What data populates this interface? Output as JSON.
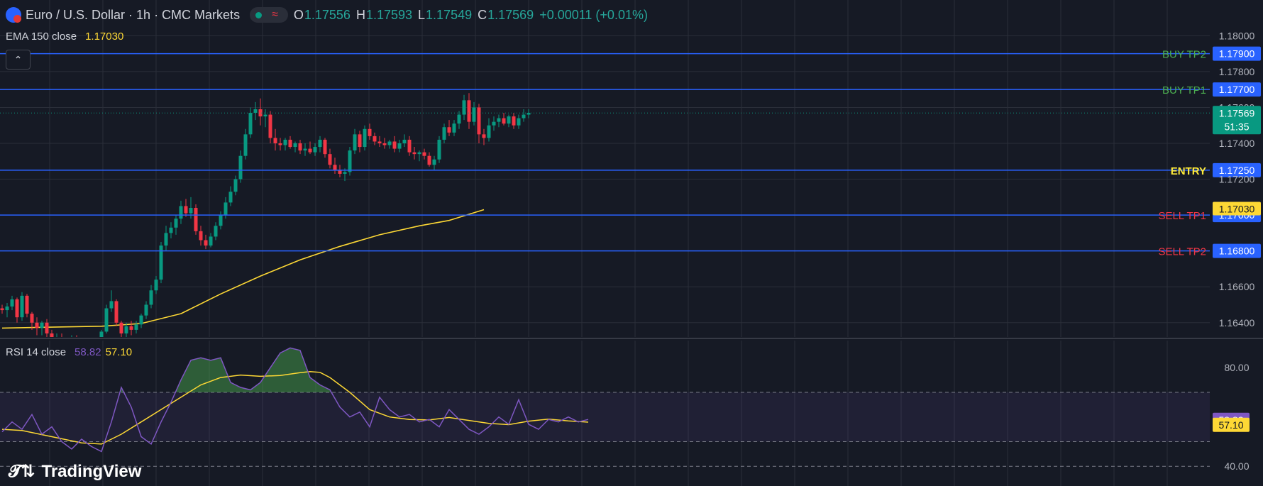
{
  "header": {
    "symbol_title": "Euro / U.S. Dollar · 1h · CMC Markets",
    "ohlc": {
      "o_label": "O",
      "o": "1.17556",
      "h_label": "H",
      "h": "1.17593",
      "l_label": "L",
      "l": "1.17549",
      "c_label": "C",
      "c": "1.17569",
      "change": "+0.00011 (+0.01%)"
    }
  },
  "indicators": {
    "ema": {
      "label": "EMA 150 close",
      "value": "1.17030"
    },
    "rsi": {
      "label": "RSI 14 close",
      "value": "58.82",
      "ma_value": "57.10"
    }
  },
  "branding": {
    "logo_text": "TradingView"
  },
  "colors": {
    "background": "#161a25",
    "grid": "#2a2e39",
    "up": "#089981",
    "down": "#f23645",
    "level_line": "#2962ff",
    "ema": "#fdd835",
    "rsi": "#7e57c2",
    "rsi_ma": "#fdd835",
    "buy_label": "#4caf50",
    "sell_label": "#f23645",
    "entry_label": "#ffeb3b"
  },
  "chart_data": [
    {
      "type": "candlestick",
      "symbol": "EUR/USD",
      "interval": "1h",
      "ylim": [
        1.1632,
        1.1812
      ],
      "y_ticks": [
        "1.18000",
        "1.17800",
        "1.17600",
        "1.17400",
        "1.17200",
        "1.16600",
        "1.16400"
      ],
      "levels": [
        {
          "name": "BUY TP2",
          "price": "1.17900",
          "value": 1.179,
          "kind": "buy"
        },
        {
          "name": "BUY TP1",
          "price": "1.17700",
          "value": 1.177,
          "kind": "buy"
        },
        {
          "name": "ENTRY",
          "price": "1.17250",
          "value": 1.1725,
          "kind": "entry"
        },
        {
          "name": "SELL TP1",
          "price": "1.17000",
          "value": 1.17,
          "kind": "sell"
        },
        {
          "name": "SELL TP2",
          "price": "1.16800",
          "value": 1.168,
          "kind": "sell"
        }
      ],
      "last_price": {
        "label": "1.17569",
        "value": 1.17569,
        "countdown": "51:35"
      },
      "ema_tag": {
        "label": "1.17030",
        "value": 1.1703
      },
      "ema_points": [
        [
          0,
          1.1637
        ],
        [
          10,
          1.16375
        ],
        [
          20,
          1.1638
        ],
        [
          28,
          1.16395
        ],
        [
          36,
          1.1645
        ],
        [
          44,
          1.1656
        ],
        [
          52,
          1.1666
        ],
        [
          60,
          1.1675
        ],
        [
          68,
          1.16825
        ],
        [
          76,
          1.1689
        ],
        [
          84,
          1.1694
        ],
        [
          90,
          1.1697
        ],
        [
          97,
          1.1703
        ]
      ],
      "candles": [
        [
          1.1648,
          1.165,
          1.1645,
          1.1647
        ],
        [
          1.1647,
          1.1651,
          1.1643,
          1.1649
        ],
        [
          1.1649,
          1.1655,
          1.1647,
          1.1653
        ],
        [
          1.1653,
          1.1654,
          1.164,
          1.1643
        ],
        [
          1.1643,
          1.1657,
          1.1641,
          1.1655
        ],
        [
          1.1655,
          1.1656,
          1.1643,
          1.1645
        ],
        [
          1.1645,
          1.1646,
          1.1636,
          1.164
        ],
        [
          1.164,
          1.1643,
          1.1633,
          1.1637
        ],
        [
          1.1637,
          1.1641,
          1.1633,
          1.164
        ],
        [
          1.164,
          1.1642,
          1.1631,
          1.1634
        ],
        [
          1.1634,
          1.1636,
          1.1629,
          1.1631
        ],
        [
          1.1631,
          1.1634,
          1.1629,
          1.1632
        ],
        [
          1.1632,
          1.1634,
          1.163,
          1.1631
        ],
        [
          1.1631,
          1.1632,
          1.1629,
          1.163
        ],
        [
          1.163,
          1.1633,
          1.1628,
          1.1631
        ],
        [
          1.1631,
          1.1633,
          1.1629,
          1.163
        ],
        [
          1.163,
          1.1632,
          1.1628,
          1.1629
        ],
        [
          1.1629,
          1.1631,
          1.1627,
          1.1628
        ],
        [
          1.1628,
          1.163,
          1.1626,
          1.1627
        ],
        [
          1.1627,
          1.1629,
          1.1625,
          1.1628
        ],
        [
          1.1628,
          1.1636,
          1.1627,
          1.1635
        ],
        [
          1.1635,
          1.165,
          1.1634,
          1.1648
        ],
        [
          1.1648,
          1.1658,
          1.1646,
          1.1652
        ],
        [
          1.1652,
          1.1653,
          1.1638,
          1.164
        ],
        [
          1.164,
          1.1641,
          1.163,
          1.1634
        ],
        [
          1.1634,
          1.164,
          1.1632,
          1.1638
        ],
        [
          1.1638,
          1.1641,
          1.1633,
          1.1636
        ],
        [
          1.1636,
          1.1641,
          1.1634,
          1.1639
        ],
        [
          1.1639,
          1.1645,
          1.1637,
          1.1644
        ],
        [
          1.1644,
          1.1652,
          1.1642,
          1.165
        ],
        [
          1.165,
          1.1661,
          1.1648,
          1.1658
        ],
        [
          1.1658,
          1.1666,
          1.1656,
          1.1664
        ],
        [
          1.1664,
          1.1685,
          1.1662,
          1.1683
        ],
        [
          1.1683,
          1.1694,
          1.168,
          1.169
        ],
        [
          1.169,
          1.1696,
          1.1687,
          1.1693
        ],
        [
          1.1693,
          1.17,
          1.1689,
          1.1698
        ],
        [
          1.1698,
          1.1708,
          1.1695,
          1.1705
        ],
        [
          1.1705,
          1.1709,
          1.1699,
          1.1701
        ],
        [
          1.1701,
          1.171,
          1.1698,
          1.1704
        ],
        [
          1.1704,
          1.1706,
          1.1689,
          1.1691
        ],
        [
          1.1691,
          1.1694,
          1.1683,
          1.1686
        ],
        [
          1.1686,
          1.1689,
          1.1681,
          1.1683
        ],
        [
          1.1683,
          1.169,
          1.1682,
          1.1688
        ],
        [
          1.1688,
          1.1696,
          1.1686,
          1.1694
        ],
        [
          1.1694,
          1.1702,
          1.1692,
          1.17
        ],
        [
          1.17,
          1.171,
          1.1698,
          1.1707
        ],
        [
          1.1707,
          1.1716,
          1.1705,
          1.1713
        ],
        [
          1.1713,
          1.1722,
          1.1711,
          1.172
        ],
        [
          1.172,
          1.1736,
          1.1718,
          1.1733
        ],
        [
          1.1733,
          1.1748,
          1.1731,
          1.1745
        ],
        [
          1.1745,
          1.176,
          1.1743,
          1.1757
        ],
        [
          1.1757,
          1.1763,
          1.1753,
          1.1759
        ],
        [
          1.1759,
          1.1765,
          1.175,
          1.1755
        ],
        [
          1.1755,
          1.1759,
          1.1749,
          1.1756
        ],
        [
          1.1756,
          1.1758,
          1.174,
          1.1743
        ],
        [
          1.1743,
          1.1748,
          1.1736,
          1.174
        ],
        [
          1.174,
          1.1743,
          1.1736,
          1.1739
        ],
        [
          1.1739,
          1.1743,
          1.1736,
          1.1742
        ],
        [
          1.1742,
          1.1744,
          1.1737,
          1.1738
        ],
        [
          1.1738,
          1.1741,
          1.1735,
          1.174
        ],
        [
          1.174,
          1.1742,
          1.1734,
          1.1736
        ],
        [
          1.1736,
          1.174,
          1.1733,
          1.1737
        ],
        [
          1.1737,
          1.1741,
          1.1734,
          1.1735
        ],
        [
          1.1735,
          1.174,
          1.1733,
          1.1738
        ],
        [
          1.1738,
          1.1744,
          1.1735,
          1.1742
        ],
        [
          1.1742,
          1.1743,
          1.1732,
          1.1734
        ],
        [
          1.1734,
          1.1737,
          1.1726,
          1.1728
        ],
        [
          1.1728,
          1.1732,
          1.1723,
          1.1725
        ],
        [
          1.1725,
          1.1728,
          1.1721,
          1.1723
        ],
        [
          1.1723,
          1.1726,
          1.1719,
          1.1724
        ],
        [
          1.1724,
          1.1738,
          1.1722,
          1.1736
        ],
        [
          1.1736,
          1.1748,
          1.1734,
          1.1745
        ],
        [
          1.1745,
          1.1747,
          1.1735,
          1.1738
        ],
        [
          1.1738,
          1.175,
          1.1736,
          1.1748
        ],
        [
          1.1748,
          1.1751,
          1.1742,
          1.1744
        ],
        [
          1.1744,
          1.1746,
          1.1739,
          1.1741
        ],
        [
          1.1741,
          1.1744,
          1.1738,
          1.174
        ],
        [
          1.174,
          1.1743,
          1.1737,
          1.1739
        ],
        [
          1.1739,
          1.1742,
          1.1737,
          1.1741
        ],
        [
          1.1741,
          1.1744,
          1.1735,
          1.1737
        ],
        [
          1.1737,
          1.1742,
          1.1735,
          1.174
        ],
        [
          1.174,
          1.1745,
          1.1738,
          1.1742
        ],
        [
          1.1742,
          1.1744,
          1.1733,
          1.1735
        ],
        [
          1.1735,
          1.1738,
          1.1731,
          1.1734
        ],
        [
          1.1734,
          1.1736,
          1.173,
          1.1735
        ],
        [
          1.1735,
          1.1737,
          1.1731,
          1.1733
        ],
        [
          1.1733,
          1.1735,
          1.1727,
          1.1728
        ],
        [
          1.1728,
          1.1733,
          1.1725,
          1.1731
        ],
        [
          1.1731,
          1.1744,
          1.1729,
          1.1742
        ],
        [
          1.1742,
          1.1751,
          1.174,
          1.1749
        ],
        [
          1.1749,
          1.1753,
          1.1744,
          1.1746
        ],
        [
          1.1746,
          1.1753,
          1.1744,
          1.1751
        ],
        [
          1.1751,
          1.1758,
          1.1748,
          1.1756
        ],
        [
          1.1756,
          1.1767,
          1.1753,
          1.1764
        ],
        [
          1.1764,
          1.1768,
          1.1748,
          1.1752
        ],
        [
          1.1752,
          1.1763,
          1.175,
          1.176
        ],
        [
          1.176,
          1.1762,
          1.174,
          1.1745
        ],
        [
          1.1745,
          1.1748,
          1.1739,
          1.1743
        ],
        [
          1.1743,
          1.1754,
          1.1741,
          1.175
        ],
        [
          1.175,
          1.1755,
          1.1747,
          1.1752
        ],
        [
          1.1752,
          1.1756,
          1.1749,
          1.1754
        ],
        [
          1.1754,
          1.1757,
          1.175,
          1.1751
        ],
        [
          1.1751,
          1.1756,
          1.1749,
          1.1755
        ],
        [
          1.1755,
          1.1757,
          1.1748,
          1.175
        ],
        [
          1.175,
          1.1756,
          1.1748,
          1.1754
        ],
        [
          1.1754,
          1.1759,
          1.1752,
          1.1756
        ],
        [
          1.1756,
          1.1759,
          1.1754,
          1.1757
        ]
      ]
    },
    {
      "type": "line",
      "name": "RSI 14",
      "ylim": [
        32,
        91
      ],
      "y_ticks": [
        "80.00",
        "40.00"
      ],
      "bands": [
        70,
        50
      ],
      "rsi_tag": {
        "label": "58.82",
        "value": 58.82
      },
      "ma_tag": {
        "label": "57.10",
        "value": 57.1
      },
      "rsi_points": [
        [
          0,
          54
        ],
        [
          2,
          58
        ],
        [
          4,
          55
        ],
        [
          6,
          61
        ],
        [
          8,
          53
        ],
        [
          10,
          56
        ],
        [
          12,
          50
        ],
        [
          14,
          47
        ],
        [
          16,
          51
        ],
        [
          18,
          48
        ],
        [
          20,
          46
        ],
        [
          22,
          58
        ],
        [
          24,
          72
        ],
        [
          26,
          64
        ],
        [
          28,
          52
        ],
        [
          30,
          49
        ],
        [
          32,
          58
        ],
        [
          34,
          66
        ],
        [
          36,
          75
        ],
        [
          38,
          83
        ],
        [
          40,
          84
        ],
        [
          42,
          83
        ],
        [
          44,
          84
        ],
        [
          46,
          74
        ],
        [
          48,
          72
        ],
        [
          50,
          71
        ],
        [
          52,
          74
        ],
        [
          54,
          80
        ],
        [
          56,
          86
        ],
        [
          58,
          88
        ],
        [
          60,
          87
        ],
        [
          62,
          76
        ],
        [
          64,
          73
        ],
        [
          66,
          71
        ],
        [
          68,
          64
        ],
        [
          70,
          60
        ],
        [
          72,
          62
        ],
        [
          74,
          56
        ],
        [
          76,
          68
        ],
        [
          78,
          63
        ],
        [
          80,
          60
        ],
        [
          82,
          61
        ],
        [
          84,
          58
        ],
        [
          86,
          59
        ],
        [
          88,
          56
        ],
        [
          90,
          63
        ],
        [
          92,
          59
        ],
        [
          94,
          55
        ],
        [
          96,
          53
        ],
        [
          98,
          56
        ],
        [
          100,
          60
        ],
        [
          102,
          57
        ],
        [
          104,
          67
        ],
        [
          106,
          57
        ],
        [
          108,
          55
        ],
        [
          110,
          59
        ],
        [
          112,
          58
        ],
        [
          114,
          60
        ],
        [
          116,
          58
        ],
        [
          118,
          59
        ]
      ],
      "ma_points": [
        [
          0,
          55
        ],
        [
          4,
          54.5
        ],
        [
          10,
          52
        ],
        [
          16,
          49.5
        ],
        [
          20,
          49
        ],
        [
          24,
          53
        ],
        [
          28,
          58
        ],
        [
          32,
          63
        ],
        [
          36,
          68
        ],
        [
          40,
          73
        ],
        [
          44,
          76
        ],
        [
          48,
          77
        ],
        [
          52,
          76.5
        ],
        [
          56,
          76.8
        ],
        [
          60,
          78
        ],
        [
          62,
          78.4
        ],
        [
          64,
          78.1
        ],
        [
          66,
          76
        ],
        [
          70,
          70
        ],
        [
          74,
          63
        ],
        [
          78,
          60
        ],
        [
          82,
          59
        ],
        [
          86,
          58.8
        ],
        [
          90,
          59.8
        ],
        [
          94,
          58.6
        ],
        [
          98,
          57.4
        ],
        [
          102,
          56.9
        ],
        [
          106,
          58.3
        ],
        [
          110,
          59.1
        ],
        [
          114,
          58.4
        ],
        [
          118,
          57.9
        ]
      ]
    }
  ]
}
